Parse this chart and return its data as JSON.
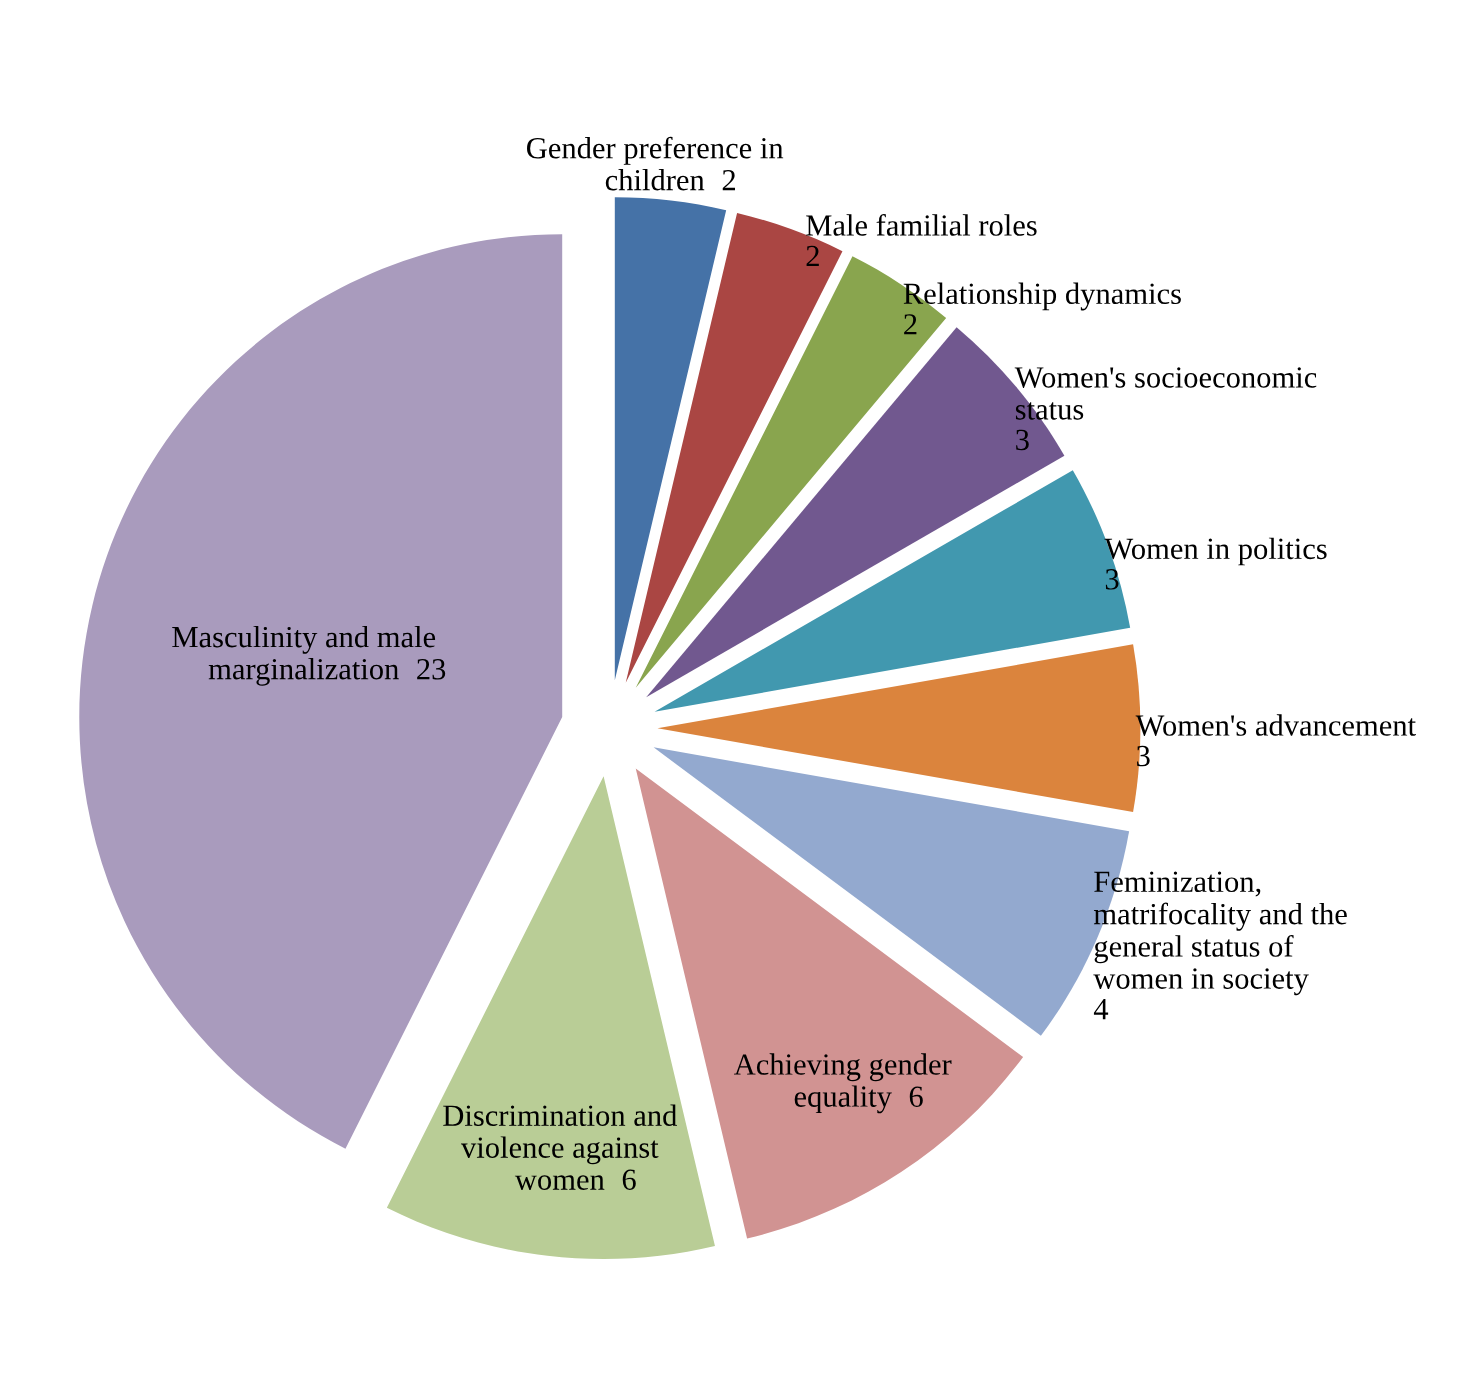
{
  "chart_data": {
    "type": "pie",
    "categories": [
      "Gender preference in children",
      "Male familial roles",
      "Relationship dynamics",
      "Women's socioeconomic status",
      "Women in politics",
      "Women's advancement",
      "Feminization, matrifocality and the general status of women in society",
      "Achieving gender equality",
      "Discrimination and violence against women",
      "Masculinity and male marginalization"
    ],
    "values": [
      2,
      2,
      2,
      3,
      3,
      3,
      4,
      6,
      6,
      23
    ],
    "colors": [
      "#4572a7",
      "#aa4643",
      "#89a54e",
      "#71588f",
      "#4198af",
      "#db843d",
      "#93a9cf",
      "#d19392",
      "#b9cd96",
      "#a99bbd"
    ],
    "data_labels": true,
    "legend": false
  }
}
